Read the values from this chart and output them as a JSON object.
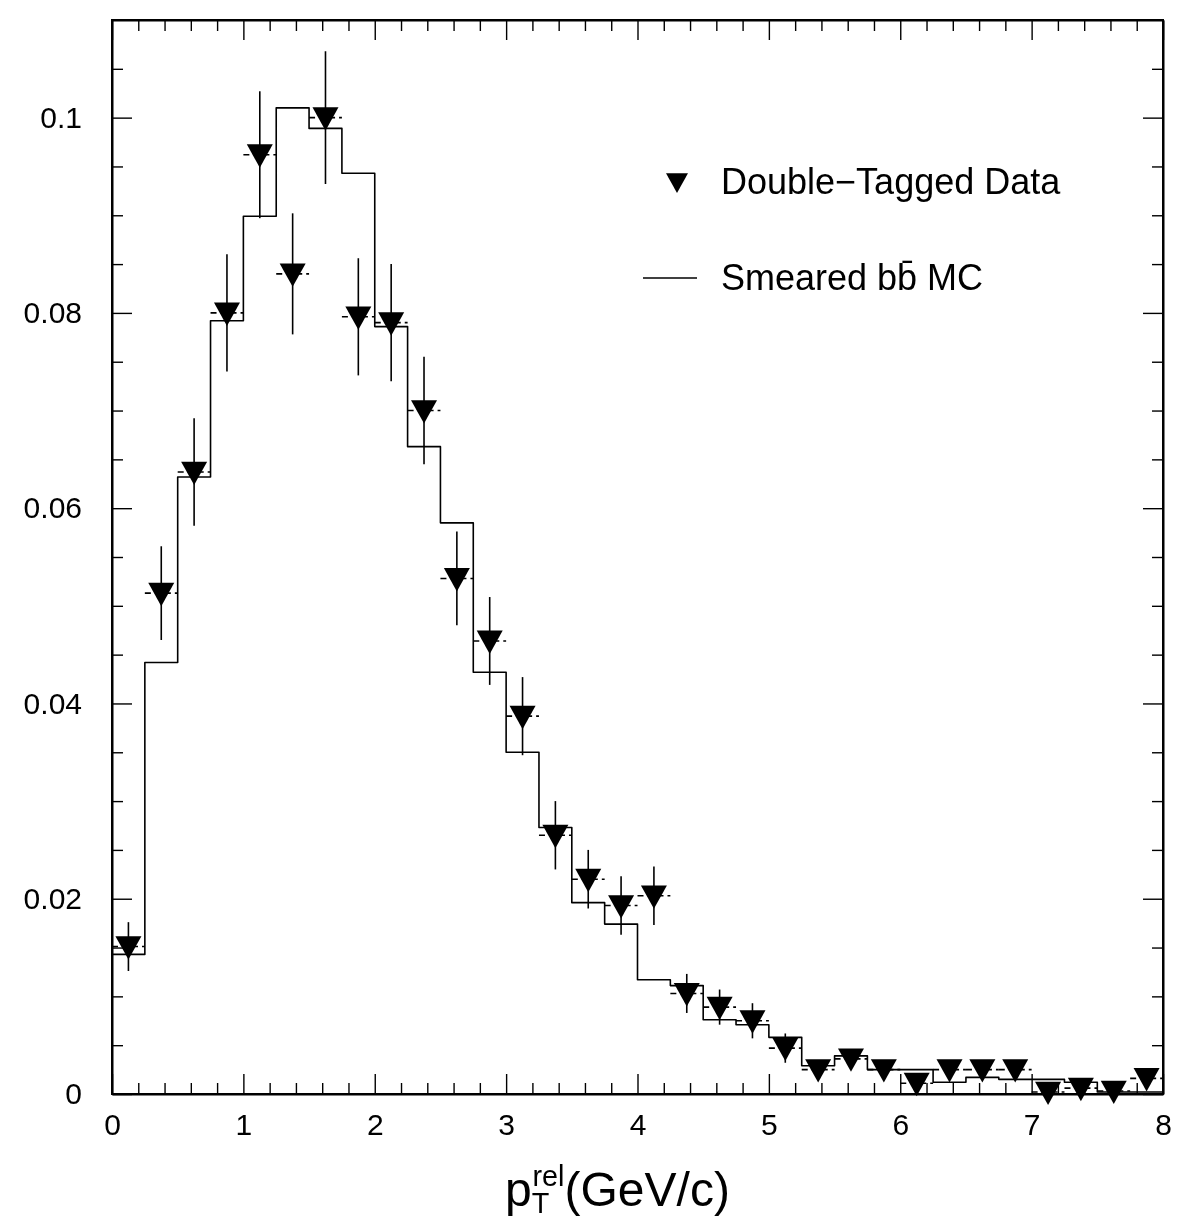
{
  "chart_data": {
    "type": "histogram",
    "xlabel": "p$_{T}$$^{rel}$(GeV/c)",
    "legend": "top right",
    "xlim": [
      0,
      8
    ],
    "ylim": [
      0,
      0.11
    ],
    "xticks": [
      0,
      {
        "value": 0.2,
        "label": null
      },
      {
        "value": 0.4,
        "label": null
      },
      {
        "value": 0.6,
        "label": null
      },
      {
        "value": 0.8,
        "label": null
      },
      1,
      {
        "value": 1.2,
        "label": null
      },
      {
        "value": 1.4,
        "label": null
      },
      {
        "value": 1.6,
        "label": null
      },
      {
        "value": 1.8,
        "label": null
      },
      2,
      {
        "value": 2.2,
        "label": null
      },
      {
        "value": 2.4,
        "label": null
      },
      {
        "value": 2.6,
        "label": null
      },
      {
        "value": 2.8,
        "label": null
      },
      3,
      {
        "value": 3.2,
        "label": null
      },
      {
        "value": 3.4,
        "label": null
      },
      {
        "value": 3.6,
        "label": null
      },
      {
        "value": 3.8,
        "label": null
      },
      4,
      {
        "value": 4.2,
        "label": null
      },
      {
        "value": 4.4,
        "label": null
      },
      {
        "value": 4.6,
        "label": null
      },
      {
        "value": 4.8,
        "label": null
      },
      5,
      {
        "value": 5.2,
        "label": null
      },
      {
        "value": 5.4,
        "label": null
      },
      {
        "value": 5.6,
        "label": null
      },
      {
        "value": 5.8,
        "label": null
      },
      6,
      {
        "value": 6.2,
        "label": null
      },
      {
        "value": 6.4,
        "label": null
      },
      {
        "value": 6.6,
        "label": null
      },
      {
        "value": 6.8,
        "label": null
      },
      7,
      {
        "value": 7.2,
        "label": null
      },
      {
        "value": 7.4,
        "label": null
      },
      {
        "value": 7.6,
        "label": null
      },
      {
        "value": 7.8,
        "label": null
      },
      8
    ],
    "yticks": [
      0,
      {
        "value": 0.005,
        "label": null
      },
      {
        "value": 0.01,
        "label": null
      },
      {
        "value": 0.015,
        "label": null
      },
      0.02,
      {
        "value": 0.025,
        "label": null
      },
      {
        "value": 0.03,
        "label": null
      },
      {
        "value": 0.035,
        "label": null
      },
      0.04,
      {
        "value": 0.045,
        "label": null
      },
      {
        "value": 0.05,
        "label": null
      },
      {
        "value": 0.055,
        "label": null
      },
      0.06,
      {
        "value": 0.065,
        "label": null
      },
      {
        "value": 0.07,
        "label": null
      },
      {
        "value": 0.075,
        "label": null
      },
      0.08,
      {
        "value": 0.085,
        "label": null
      },
      {
        "value": 0.09,
        "label": null
      },
      {
        "value": 0.095,
        "label": null
      },
      0.1,
      {
        "value": 0.105,
        "label": null
      }
    ],
    "bins": [
      0,
      0.25,
      0.5,
      0.75,
      1,
      1.25,
      1.5,
      1.75,
      2,
      2.25,
      2.5,
      2.75,
      3,
      3.25,
      3.5,
      3.75,
      4,
      4.25,
      4.5,
      4.75,
      5,
      5.25,
      5.5,
      5.75,
      6,
      6.25,
      6.5,
      6.75,
      7,
      7.25,
      7.5,
      7.75,
      8
    ],
    "series": [
      {
        "name": "Double−Tagged Data",
        "type": "scatter",
        "color": "#000000",
        "marker": "triangle",
        "x": [
          0.125,
          0.375,
          0.625,
          0.875,
          1.125,
          1.375,
          1.625,
          1.875,
          2.125,
          2.375,
          2.625,
          2.875,
          3.125,
          3.375,
          3.625,
          3.875,
          4.125,
          4.375,
          4.625,
          4.875,
          5.125,
          5.375,
          5.625,
          5.875,
          6.125,
          6.375,
          6.625,
          6.875,
          7.125,
          7.375,
          7.625,
          7.875
        ],
        "values": [
          0.0151,
          0.0513,
          0.0637,
          0.08,
          0.0962,
          0.084,
          0.1,
          0.0796,
          0.079,
          0.07,
          0.0528,
          0.0464,
          0.0387,
          0.0265,
          0.022,
          0.0193,
          0.0203,
          0.0103,
          0.0089,
          0.0075,
          0.0047,
          0.0025,
          0.0036,
          0.0025,
          0.0011,
          0.0025,
          0.0025,
          0.0025,
          0.0002,
          0.0006,
          0.0003,
          0.0016
        ],
        "errors": [
          0.0025,
          0.0048,
          0.0055,
          0.006,
          0.0065,
          0.0062,
          0.0068,
          0.006,
          0.006,
          0.0055,
          0.0048,
          0.0045,
          0.004,
          0.0035,
          0.003,
          0.003,
          0.003,
          0.002,
          0.0018,
          0.0018,
          0.0015,
          0.0005,
          0.0008,
          0.0005,
          0.0005,
          0.0005,
          0.0005,
          0.0005,
          0.0003,
          0.0005,
          0.0003,
          0.0005
        ],
        "xerrors": [
          0.125,
          0.125,
          0.125,
          0.125,
          0.125,
          0.125,
          0.125,
          0.125,
          0.125,
          0.125,
          0.125,
          0.125,
          0.125,
          0.125,
          0.125,
          0.125,
          0.125,
          0.125,
          0.125,
          0.125,
          0.125,
          0.125,
          0.125,
          0.125,
          0.125,
          0.125,
          0.125,
          0.125,
          0.125,
          0.125,
          0.125,
          0.125
        ]
      },
      {
        "name": "Smeared bb̄ MC",
        "type": "histogram",
        "color": "#000000",
        "values": [
          0.0143,
          0.0442,
          0.0632,
          0.0792,
          0.0899,
          0.101,
          0.0989,
          0.0943,
          0.0786,
          0.0663,
          0.0585,
          0.0432,
          0.035,
          0.0273,
          0.0196,
          0.0174,
          0.0117,
          0.0111,
          0.0076,
          0.0071,
          0.0058,
          0.0029,
          0.0039,
          0.0025,
          0.0025,
          0.0012,
          0.0017,
          0.0015,
          0.0015,
          0.0012,
          0.0002,
          0.0002
        ]
      }
    ]
  }
}
